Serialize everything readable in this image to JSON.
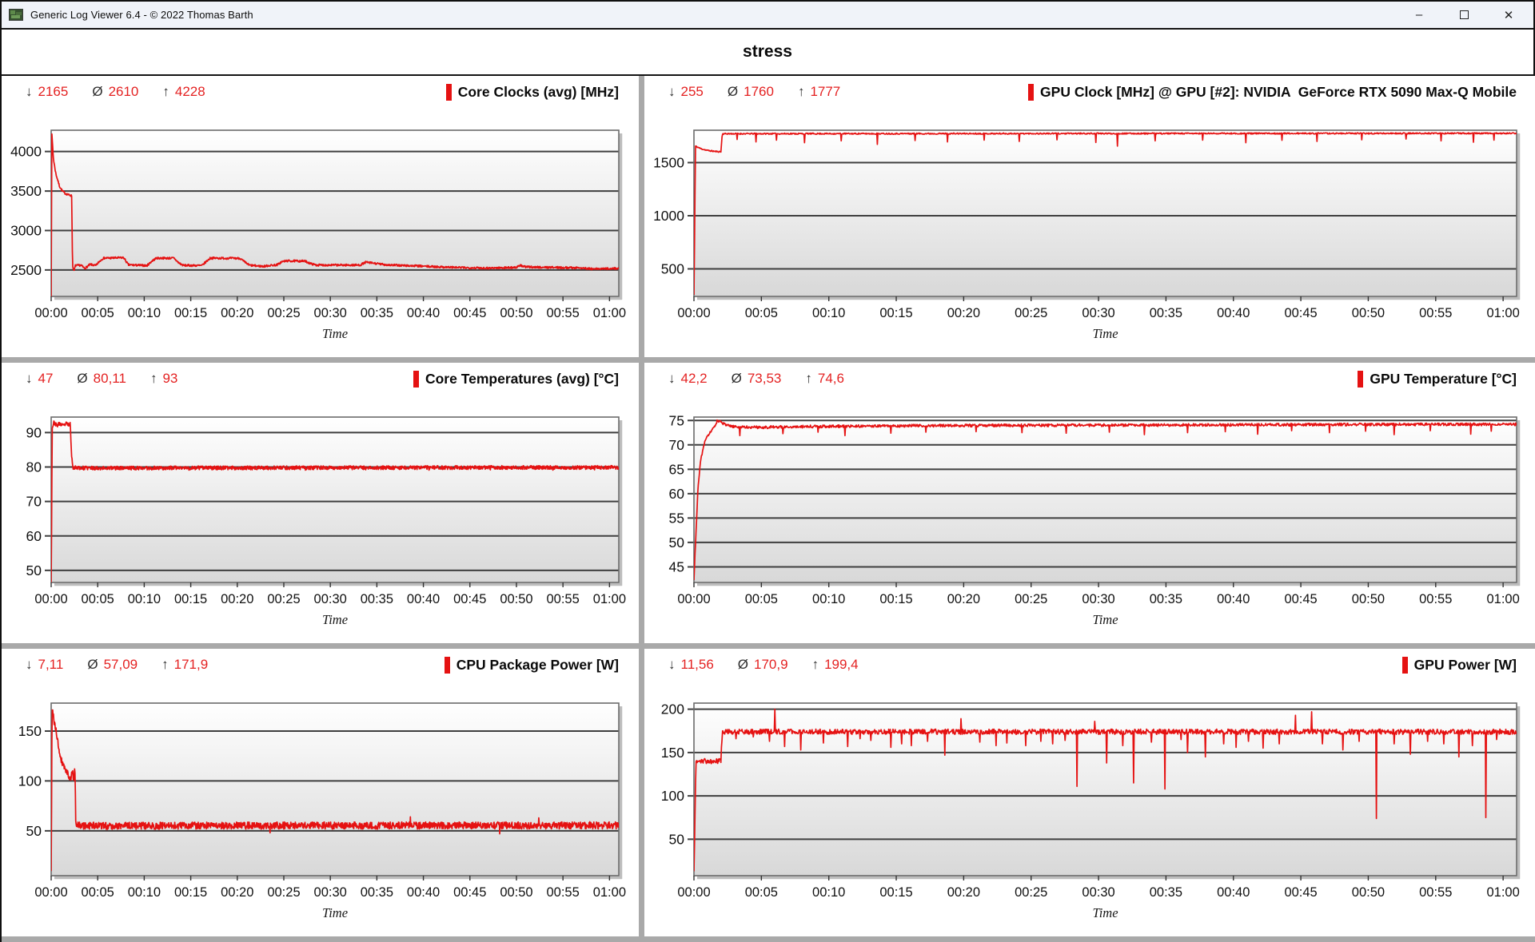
{
  "window": {
    "title": "Generic Log Viewer 6.4 - © 2022 Thomas Barth",
    "controls": {
      "minimize": "–",
      "maximize": "",
      "close": "✕"
    }
  },
  "header": {
    "title": "stress"
  },
  "stat_symbols": {
    "min": "↓",
    "avg": "Ø",
    "max": "↑"
  },
  "colors": {
    "accent": "#e51212",
    "stat_value": "#e42222",
    "grid_line": "#3f3f3f",
    "plot_border": "#6a6a6a",
    "plot_shadow": "#bdbdbd",
    "axis_text": "#111111",
    "divider": "#a9a9a9",
    "titlebar_bg": "#f0f3f9"
  },
  "time_axis": {
    "label": "Time",
    "ticks": [
      "00:00",
      "00:05",
      "00:10",
      "00:15",
      "00:20",
      "00:25",
      "00:30",
      "00:35",
      "00:40",
      "00:45",
      "00:50",
      "00:55",
      "01:00"
    ],
    "tick_minutes": [
      0,
      5,
      10,
      15,
      20,
      25,
      30,
      35,
      40,
      45,
      50,
      55,
      60
    ]
  },
  "chart_data": [
    {
      "id": "core-clocks",
      "type": "line",
      "legend": "Core Clocks (avg) [MHz]",
      "stats": {
        "min": "2165",
        "avg": "2610",
        "max": "4228"
      },
      "ylim": [
        2165,
        4270
      ],
      "yticks": [
        2500,
        3000,
        3500,
        4000
      ],
      "x_range_minutes": [
        0,
        61
      ],
      "noise": 13,
      "seed": 7,
      "keypoints": [
        [
          0,
          2165
        ],
        [
          0.07,
          4228
        ],
        [
          0.25,
          3900
        ],
        [
          0.5,
          3720
        ],
        [
          0.9,
          3560
        ],
        [
          1.2,
          3500
        ],
        [
          1.5,
          3470
        ],
        [
          1.9,
          3450
        ],
        [
          2.2,
          3440
        ],
        [
          2.3,
          2560
        ],
        [
          2.45,
          2480
        ],
        [
          2.6,
          2555
        ],
        [
          3.2,
          2560
        ],
        [
          3.6,
          2520
        ],
        [
          4.2,
          2570
        ],
        [
          4.8,
          2555
        ],
        [
          5.2,
          2610
        ],
        [
          5.6,
          2650
        ],
        [
          7.8,
          2655
        ],
        [
          8.3,
          2565
        ],
        [
          10.3,
          2555
        ],
        [
          10.8,
          2610
        ],
        [
          11.3,
          2650
        ],
        [
          13.2,
          2650
        ],
        [
          13.7,
          2590
        ],
        [
          14.2,
          2558
        ],
        [
          16.2,
          2556
        ],
        [
          16.7,
          2610
        ],
        [
          17.1,
          2650
        ],
        [
          20.3,
          2648
        ],
        [
          20.8,
          2600
        ],
        [
          21.3,
          2560
        ],
        [
          22.8,
          2545
        ],
        [
          23.3,
          2555
        ],
        [
          24.3,
          2565
        ],
        [
          24.8,
          2605
        ],
        [
          25.3,
          2615
        ],
        [
          27.3,
          2612
        ],
        [
          27.9,
          2580
        ],
        [
          28.5,
          2562
        ],
        [
          33.2,
          2562
        ],
        [
          33.8,
          2598
        ],
        [
          34.5,
          2588
        ],
        [
          35.5,
          2572
        ],
        [
          36.5,
          2562
        ],
        [
          39,
          2552
        ],
        [
          41,
          2542
        ],
        [
          44,
          2530
        ],
        [
          47,
          2524
        ],
        [
          50,
          2532
        ],
        [
          50.4,
          2558
        ],
        [
          51,
          2538
        ],
        [
          54,
          2532
        ],
        [
          57,
          2526
        ],
        [
          58.2,
          2512
        ],
        [
          59.5,
          2516
        ],
        [
          61,
          2520
        ]
      ],
      "spikes": []
    },
    {
      "id": "gpu-clock",
      "type": "line",
      "legend": "GPU Clock [MHz] @ GPU [#2]: NVIDIA  GeForce RTX 5090 Max-Q Mobile",
      "stats": {
        "min": "255",
        "avg": "1760",
        "max": "1777"
      },
      "ylim": [
        240,
        1805
      ],
      "yticks": [
        500,
        1000,
        1500
      ],
      "x_range_minutes": [
        0,
        61
      ],
      "noise": 6,
      "seed": 11,
      "keypoints": [
        [
          0,
          255
        ],
        [
          0.12,
          1655
        ],
        [
          0.5,
          1632
        ],
        [
          1.0,
          1615
        ],
        [
          1.6,
          1605
        ],
        [
          2.0,
          1602
        ],
        [
          2.1,
          1772
        ],
        [
          61,
          1776
        ]
      ],
      "spikes": [
        [
          3.2,
          1718
        ],
        [
          4.6,
          1695
        ],
        [
          6.1,
          1712
        ],
        [
          8.2,
          1688
        ],
        [
          10.9,
          1705
        ],
        [
          13.6,
          1672
        ],
        [
          16.4,
          1708
        ],
        [
          18.8,
          1695
        ],
        [
          21.5,
          1712
        ],
        [
          24.1,
          1700
        ],
        [
          26.9,
          1715
        ],
        [
          29.8,
          1690
        ],
        [
          31.4,
          1655
        ],
        [
          34.2,
          1705
        ],
        [
          37.7,
          1712
        ],
        [
          40.9,
          1688
        ],
        [
          43.6,
          1710
        ],
        [
          46.2,
          1700
        ],
        [
          49.5,
          1715
        ],
        [
          52.8,
          1722
        ],
        [
          55.4,
          1705
        ],
        [
          57.8,
          1692
        ],
        [
          59.3,
          1712
        ]
      ]
    },
    {
      "id": "core-temperatures",
      "type": "line",
      "legend": "Core Temperatures (avg) [°C]",
      "stats": {
        "min": "47",
        "avg": "80,11",
        "max": "93"
      },
      "ylim": [
        46.5,
        94.5
      ],
      "yticks": [
        50,
        60,
        70,
        80,
        90
      ],
      "x_range_minutes": [
        0,
        61
      ],
      "noise": 0.55,
      "seed": 23,
      "keypoints": [
        [
          0,
          47
        ],
        [
          0.12,
          91.5
        ],
        [
          0.3,
          93
        ],
        [
          0.6,
          92
        ],
        [
          0.9,
          92.6
        ],
        [
          1.3,
          91.9
        ],
        [
          1.6,
          92.6
        ],
        [
          1.9,
          92.2
        ],
        [
          2.05,
          92.5
        ],
        [
          2.2,
          83
        ],
        [
          2.35,
          79.9
        ],
        [
          3.5,
          79.7
        ],
        [
          61,
          79.9
        ]
      ],
      "spikes": [
        [
          9.4,
          79.2
        ],
        [
          14.8,
          79.1
        ],
        [
          21.6,
          79.2
        ],
        [
          27.3,
          79.1
        ],
        [
          33.8,
          79.2
        ],
        [
          40.6,
          79.1
        ],
        [
          47.2,
          79.2
        ],
        [
          53.9,
          79.1
        ],
        [
          58.4,
          79.2
        ]
      ]
    },
    {
      "id": "gpu-temperature",
      "type": "line",
      "legend": "GPU Temperature [°C]",
      "stats": {
        "min": "42,2",
        "avg": "73,53",
        "max": "74,6"
      },
      "ylim": [
        41.8,
        75.7
      ],
      "yticks": [
        45,
        50,
        55,
        60,
        65,
        70,
        75
      ],
      "x_range_minutes": [
        0,
        61
      ],
      "noise": 0.28,
      "seed": 31,
      "keypoints": [
        [
          0,
          42.2
        ],
        [
          0.15,
          52
        ],
        [
          0.3,
          61
        ],
        [
          0.5,
          67
        ],
        [
          0.8,
          70.5
        ],
        [
          1.1,
          72.3
        ],
        [
          1.5,
          73.5
        ],
        [
          1.75,
          75.1
        ],
        [
          2.0,
          74.6
        ],
        [
          2.4,
          74
        ],
        [
          3,
          73.7
        ],
        [
          5,
          73.6
        ],
        [
          8,
          73.75
        ],
        [
          12,
          73.85
        ],
        [
          18,
          73.95
        ],
        [
          25,
          74
        ],
        [
          35,
          74.05
        ],
        [
          45,
          74.15
        ],
        [
          55,
          74.2
        ],
        [
          61,
          74.2
        ]
      ],
      "spikes": [
        [
          3.4,
          71.9
        ],
        [
          6.6,
          72.3
        ],
        [
          9.2,
          72.6
        ],
        [
          11.2,
          71.9
        ],
        [
          14.6,
          72.4
        ],
        [
          17.2,
          72.6
        ],
        [
          20.9,
          72.7
        ],
        [
          24.3,
          72.5
        ],
        [
          27.6,
          72.4
        ],
        [
          30.8,
          72.6
        ],
        [
          33.4,
          72.1
        ],
        [
          36.6,
          72.5
        ],
        [
          39.4,
          72.7
        ],
        [
          41.8,
          72.2
        ],
        [
          44.3,
          72.9
        ],
        [
          47.1,
          72.5
        ],
        [
          49.8,
          72.8
        ],
        [
          51.9,
          72.1
        ],
        [
          54.6,
          72.9
        ],
        [
          57.6,
          72.2
        ],
        [
          59.1,
          72.8
        ]
      ]
    },
    {
      "id": "cpu-package-power",
      "type": "line",
      "legend": "CPU Package Power [W]",
      "stats": {
        "min": "7,11",
        "avg": "57,09",
        "max": "171,9"
      },
      "ylim": [
        5,
        178
      ],
      "yticks": [
        50,
        100,
        150
      ],
      "x_range_minutes": [
        0,
        61
      ],
      "noise": 3.6,
      "seed": 41,
      "keypoints": [
        [
          0,
          7.1
        ],
        [
          0.1,
          171.9
        ],
        [
          0.35,
          158
        ],
        [
          0.6,
          146
        ],
        [
          0.85,
          131
        ],
        [
          1.1,
          121
        ],
        [
          1.45,
          113
        ],
        [
          1.8,
          107
        ],
        [
          2.1,
          103
        ],
        [
          2.3,
          109
        ],
        [
          2.45,
          100
        ],
        [
          2.55,
          113
        ],
        [
          2.65,
          56
        ],
        [
          3.2,
          55
        ],
        [
          61,
          55.5
        ]
      ],
      "spikes": [
        [
          23.5,
          48
        ],
        [
          38.6,
          64
        ],
        [
          48.2,
          47
        ],
        [
          52.4,
          63
        ]
      ]
    },
    {
      "id": "gpu-power",
      "type": "line",
      "legend": "GPU Power [W]",
      "stats": {
        "min": "11,56",
        "avg": "170,9",
        "max": "199,4"
      },
      "ylim": [
        8,
        207
      ],
      "yticks": [
        50,
        100,
        150,
        200
      ],
      "x_range_minutes": [
        0,
        61
      ],
      "noise": 3,
      "seed": 57,
      "keypoints": [
        [
          0,
          11.6
        ],
        [
          0.15,
          140
        ],
        [
          2.0,
          140
        ],
        [
          2.1,
          174
        ],
        [
          61,
          174
        ]
      ],
      "spikes": [
        [
          3.1,
          166
        ],
        [
          4.4,
          168
        ],
        [
          5.6,
          163
        ],
        [
          6.0,
          200
        ],
        [
          6.7,
          157
        ],
        [
          7.9,
          153
        ],
        [
          9.6,
          161
        ],
        [
          11.4,
          157
        ],
        [
          12.3,
          166
        ],
        [
          13.1,
          164
        ],
        [
          14.6,
          156
        ],
        [
          15.4,
          160
        ],
        [
          16.1,
          158
        ],
        [
          17.3,
          163
        ],
        [
          18.6,
          147
        ],
        [
          19.8,
          189
        ],
        [
          21.2,
          162
        ],
        [
          22.4,
          158
        ],
        [
          23.2,
          161
        ],
        [
          24.6,
          158
        ],
        [
          25.7,
          163
        ],
        [
          26.6,
          160
        ],
        [
          27.5,
          164
        ],
        [
          28.4,
          111
        ],
        [
          29.7,
          186
        ],
        [
          30.6,
          138
        ],
        [
          31.8,
          158
        ],
        [
          32.6,
          115
        ],
        [
          33.9,
          162
        ],
        [
          34.9,
          108
        ],
        [
          36.1,
          165
        ],
        [
          36.6,
          150
        ],
        [
          37.9,
          145
        ],
        [
          39.3,
          160
        ],
        [
          40.2,
          156
        ],
        [
          41.1,
          163
        ],
        [
          42.2,
          155
        ],
        [
          43.4,
          160
        ],
        [
          44.6,
          193
        ],
        [
          45.8,
          197
        ],
        [
          46.6,
          160
        ],
        [
          48.1,
          153
        ],
        [
          49.3,
          163
        ],
        [
          50.6,
          74
        ],
        [
          51.9,
          160
        ],
        [
          53.1,
          148
        ],
        [
          54.4,
          163
        ],
        [
          55.6,
          160
        ],
        [
          56.7,
          145
        ],
        [
          57.7,
          158
        ],
        [
          58.7,
          75
        ],
        [
          59.5,
          165
        ]
      ]
    }
  ]
}
